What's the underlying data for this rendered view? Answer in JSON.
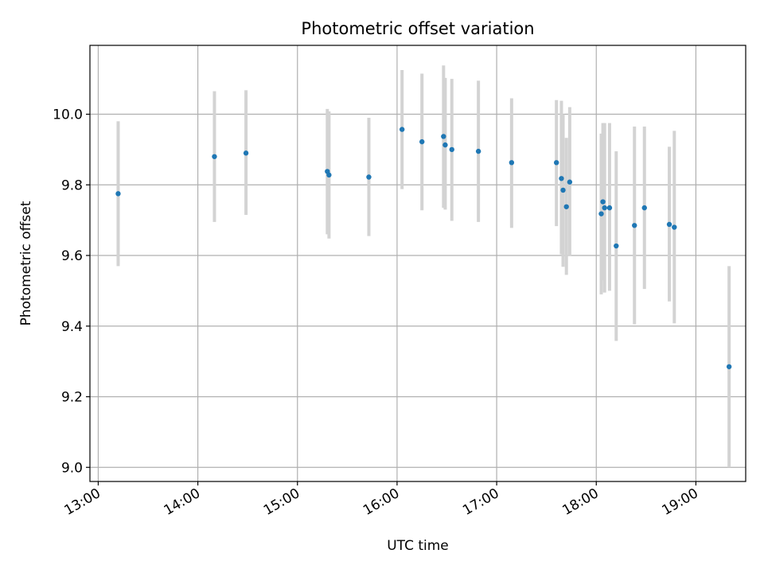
{
  "chart_data": {
    "type": "scatter",
    "title": "Photometric offset variation",
    "xlabel": "UTC time",
    "ylabel": "Photometric offset",
    "x_ticks": [
      "13:00",
      "14:00",
      "15:00",
      "16:00",
      "17:00",
      "18:00",
      "19:00"
    ],
    "y_ticks": [
      "9.0",
      "9.2",
      "9.4",
      "9.6",
      "9.8",
      "10.0"
    ],
    "xlim": [
      "12:55",
      "19:30"
    ],
    "ylim": [
      8.96,
      10.195
    ],
    "grid": true,
    "marker_color": "#1f77b4",
    "errorbar_color": "#d3d3d3",
    "points": [
      {
        "time": "13:12",
        "y": 9.775,
        "lo": 9.57,
        "hi": 9.98
      },
      {
        "time": "14:10",
        "y": 9.88,
        "lo": 9.695,
        "hi": 10.065
      },
      {
        "time": "14:29",
        "y": 9.89,
        "lo": 9.715,
        "hi": 10.068
      },
      {
        "time": "15:18",
        "y": 9.838,
        "lo": 9.66,
        "hi": 10.015
      },
      {
        "time": "15:19",
        "y": 9.828,
        "lo": 9.648,
        "hi": 10.008
      },
      {
        "time": "15:43",
        "y": 9.822,
        "lo": 9.655,
        "hi": 9.99
      },
      {
        "time": "16:03",
        "y": 9.957,
        "lo": 9.788,
        "hi": 10.125
      },
      {
        "time": "16:15",
        "y": 9.922,
        "lo": 9.728,
        "hi": 10.115
      },
      {
        "time": "16:28",
        "y": 9.937,
        "lo": 9.735,
        "hi": 10.138
      },
      {
        "time": "16:29",
        "y": 9.913,
        "lo": 9.73,
        "hi": 10.103
      },
      {
        "time": "16:33",
        "y": 9.9,
        "lo": 9.698,
        "hi": 10.1
      },
      {
        "time": "16:49",
        "y": 9.895,
        "lo": 9.695,
        "hi": 10.095
      },
      {
        "time": "17:09",
        "y": 9.863,
        "lo": 9.678,
        "hi": 10.045
      },
      {
        "time": "17:36",
        "y": 9.863,
        "lo": 9.683,
        "hi": 10.04
      },
      {
        "time": "17:39",
        "y": 9.818,
        "lo": 9.603,
        "hi": 10.038
      },
      {
        "time": "17:40",
        "y": 9.785,
        "lo": 9.568,
        "hi": 10.0
      },
      {
        "time": "17:42",
        "y": 9.738,
        "lo": 9.545,
        "hi": 9.933
      },
      {
        "time": "17:44",
        "y": 9.808,
        "lo": 9.598,
        "hi": 10.02
      },
      {
        "time": "18:03",
        "y": 9.718,
        "lo": 9.49,
        "hi": 9.945
      },
      {
        "time": "18:04",
        "y": 9.752,
        "lo": 9.53,
        "hi": 9.975
      },
      {
        "time": "18:05",
        "y": 9.735,
        "lo": 9.495,
        "hi": 9.975
      },
      {
        "time": "18:08",
        "y": 9.735,
        "lo": 9.5,
        "hi": 9.975
      },
      {
        "time": "18:12",
        "y": 9.627,
        "lo": 9.358,
        "hi": 9.895
      },
      {
        "time": "18:23",
        "y": 9.685,
        "lo": 9.405,
        "hi": 9.965
      },
      {
        "time": "18:29",
        "y": 9.735,
        "lo": 9.505,
        "hi": 9.965
      },
      {
        "time": "18:44",
        "y": 9.688,
        "lo": 9.47,
        "hi": 9.908
      },
      {
        "time": "18:47",
        "y": 9.68,
        "lo": 9.408,
        "hi": 9.953
      },
      {
        "time": "19:20",
        "y": 9.285,
        "lo": 9.0,
        "hi": 9.57
      }
    ]
  }
}
